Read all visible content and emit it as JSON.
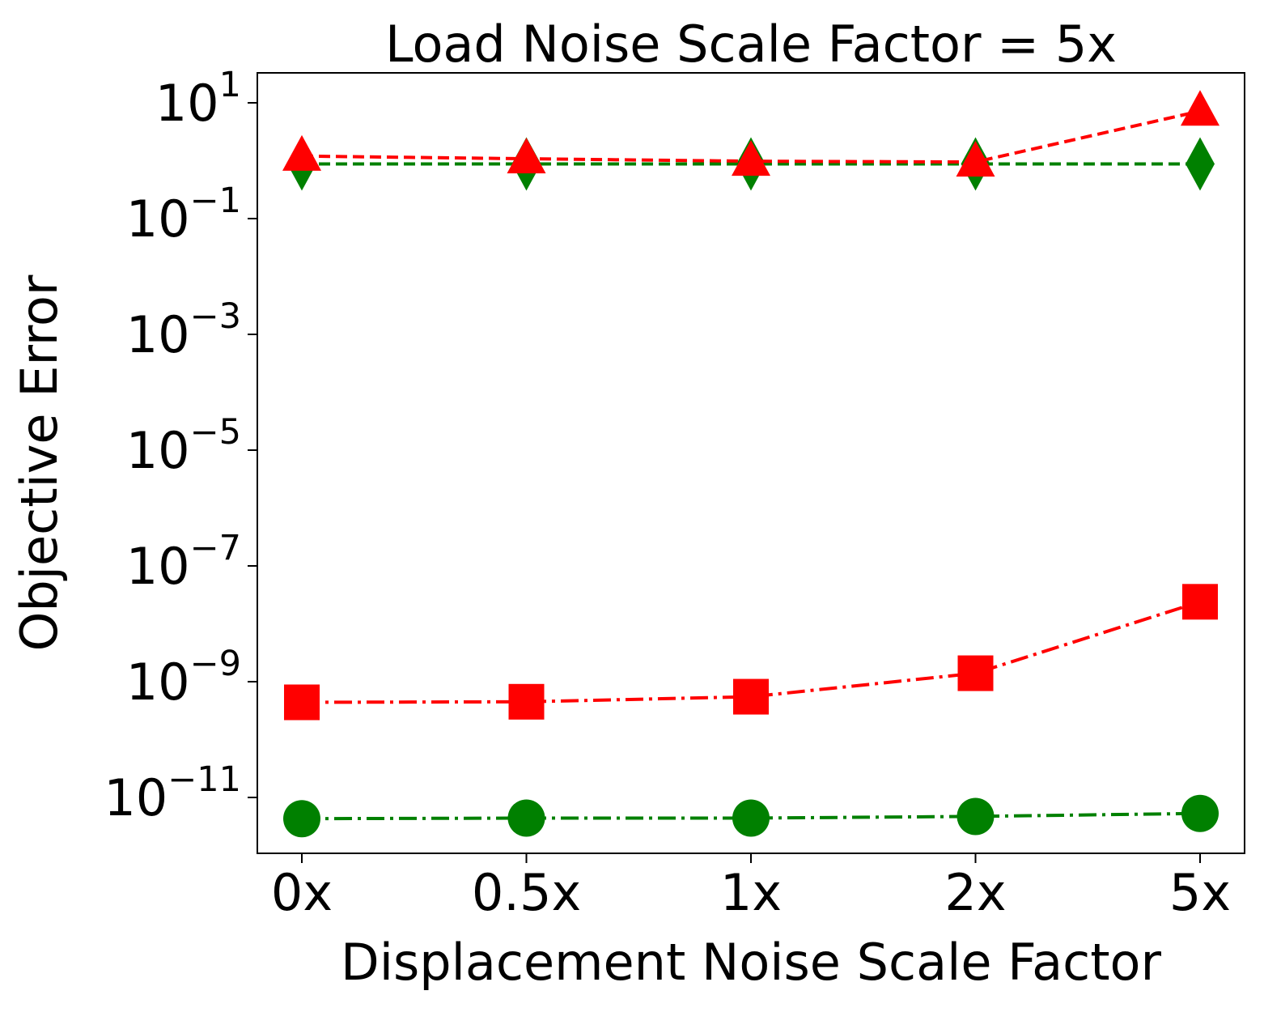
{
  "chart_data": {
    "type": "line",
    "title": "Load Noise Scale Factor = 5x",
    "xlabel": "Displacement Noise Scale Factor",
    "ylabel": "Objective Error",
    "yscale": "log",
    "ylim": [
      1e-12,
      100.0
    ],
    "categories": [
      "0x",
      "0.5x",
      "1x",
      "2x",
      "5x"
    ],
    "yticks": [
      {
        "base": "10",
        "exp": "1"
      },
      {
        "base": "10",
        "exp": "−1"
      },
      {
        "base": "10",
        "exp": "−3"
      },
      {
        "base": "10",
        "exp": "−5"
      },
      {
        "base": "10",
        "exp": "−7"
      },
      {
        "base": "10",
        "exp": "−9"
      },
      {
        "base": "10",
        "exp": "−11"
      }
    ],
    "series": [
      {
        "name": "green-diamond",
        "color": "#008000",
        "marker": "diamond",
        "linestyle": "dashed",
        "values": [
          0.88,
          0.88,
          0.88,
          0.88,
          0.88
        ]
      },
      {
        "name": "red-triangle",
        "color": "#ff0000",
        "marker": "triangle",
        "linestyle": "dashed",
        "values": [
          1.2,
          1.08,
          0.98,
          0.95,
          7.2
        ]
      },
      {
        "name": "red-square",
        "color": "#ff0000",
        "marker": "square",
        "linestyle": "dashdot",
        "values": [
          4.4e-10,
          4.5e-10,
          5.5e-10,
          1.4e-09,
          2.4e-08
        ]
      },
      {
        "name": "green-circle",
        "color": "#008000",
        "marker": "circle",
        "linestyle": "dashdot",
        "values": [
          4.3e-12,
          4.4e-12,
          4.4e-12,
          4.7e-12,
          5.3e-12
        ]
      }
    ]
  }
}
